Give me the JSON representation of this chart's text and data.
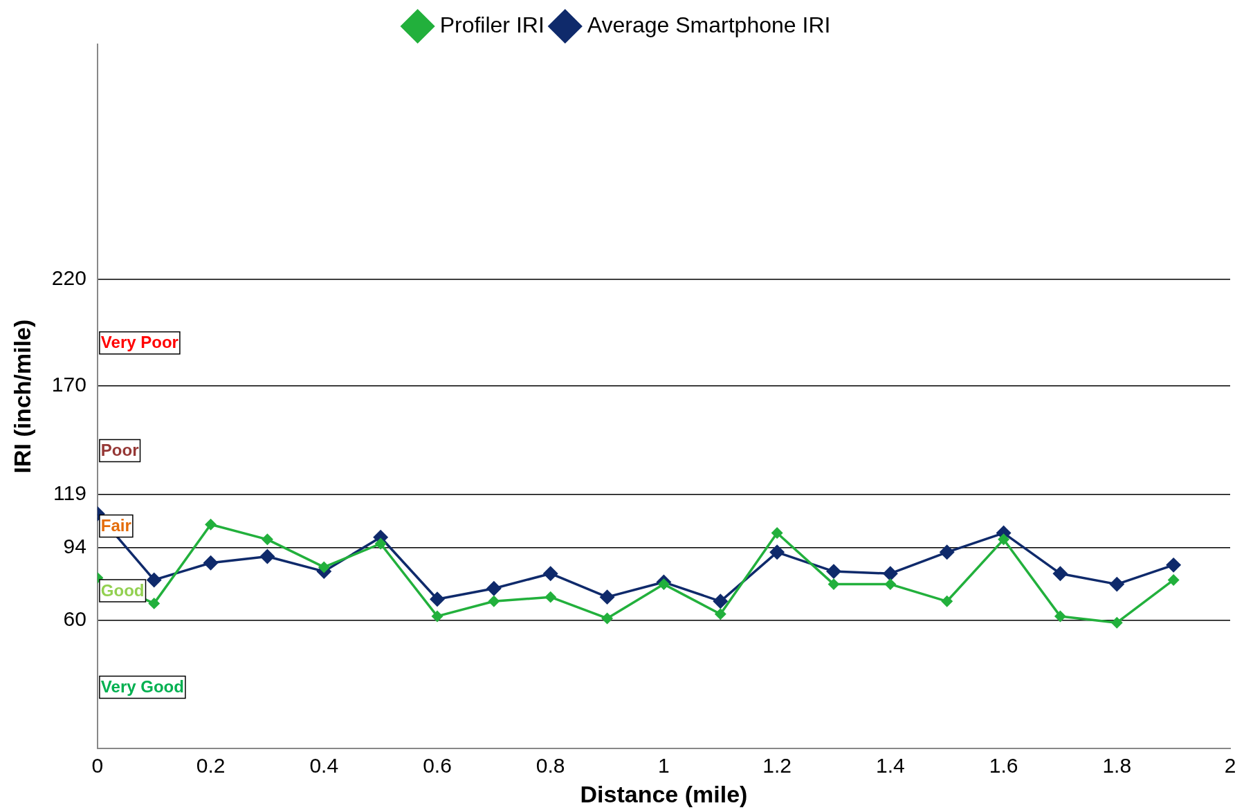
{
  "chart_data": {
    "type": "line",
    "xlabel": "Distance (mile)",
    "ylabel": "IRI (inch/mile)",
    "x": [
      0,
      0.1,
      0.2,
      0.3,
      0.4,
      0.5,
      0.6,
      0.7,
      0.8,
      0.9,
      1,
      1.1,
      1.2,
      1.3,
      1.4,
      1.5,
      1.6,
      1.7,
      1.8,
      1.9
    ],
    "series": [
      {
        "name": "Profiler IRI",
        "color": "#22b03c",
        "values": [
          80,
          68,
          105,
          98,
          85,
          96,
          62,
          69,
          71,
          61,
          77,
          63,
          101,
          77,
          77,
          69,
          98,
          62,
          59,
          79
        ]
      },
      {
        "name": "Average Smartphone IRI",
        "color": "#0f2a6b",
        "values": [
          110,
          79,
          87,
          90,
          83,
          99,
          70,
          75,
          82,
          71,
          78,
          69,
          92,
          83,
          82,
          92,
          101,
          82,
          77,
          86
        ]
      }
    ],
    "xlim": [
      0,
      2
    ],
    "xticks": [
      0,
      0.2,
      0.4,
      0.6,
      0.8,
      1,
      1.2,
      1.4,
      1.6,
      1.8,
      2
    ],
    "ylim": [
      0,
      330
    ],
    "yticks": [
      60,
      94,
      119,
      170,
      220
    ],
    "grid": "y",
    "legend": "top",
    "marker": "diamond",
    "line_style": "solid",
    "annotations": [
      "Very Poor",
      "Poor",
      "Fair",
      "Good",
      "Very Good"
    ]
  }
}
